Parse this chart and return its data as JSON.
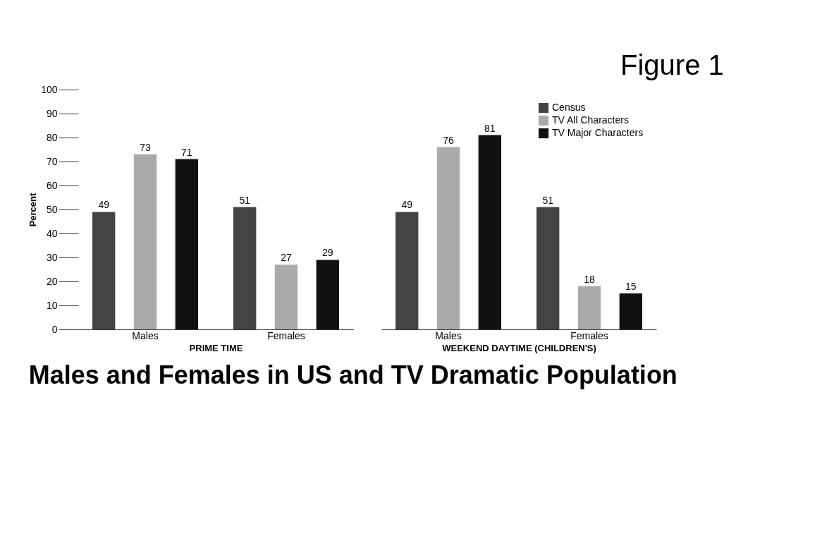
{
  "chart_data": [
    {
      "type": "bar",
      "title": "Males and Females in US and TV Dramatic Population",
      "xlabel": "PRIME TIME",
      "ylabel": "Percent",
      "categories": [
        "Males",
        "Females"
      ],
      "series": [
        {
          "color": "#444444",
          "values": [
            49,
            51
          ]
        },
        {
          "color": "#aaaaaa",
          "values": [
            73,
            27
          ]
        },
        {
          "color": "#111111",
          "values": [
            71,
            29
          ]
        }
      ],
      "ylim": [
        0,
        100
      ],
      "yticks": [
        0,
        10,
        20,
        30,
        40,
        50,
        60,
        70,
        80,
        90,
        100
      ],
      "grid": false,
      "data_labels": true,
      "legend": false
    },
    {
      "type": "bar",
      "xlabel": "WEEKEND DAYTIME (CHILDREN'S)",
      "categories": [
        "Males",
        "Females"
      ],
      "annotations": [
        "Figure 1"
      ],
      "series": [
        {
          "name": "Census",
          "color": "#444444",
          "values": [
            49,
            51
          ]
        },
        {
          "name": "TV All Characters",
          "color": "#aaaaaa",
          "values": [
            76,
            18
          ]
        },
        {
          "name": "TV Major Characters",
          "color": "#111111",
          "values": [
            81,
            15
          ]
        }
      ],
      "ylim": [
        0,
        100
      ],
      "grid": false,
      "data_labels": true,
      "legend": "top right",
      "tick_labels": "x"
    }
  ]
}
